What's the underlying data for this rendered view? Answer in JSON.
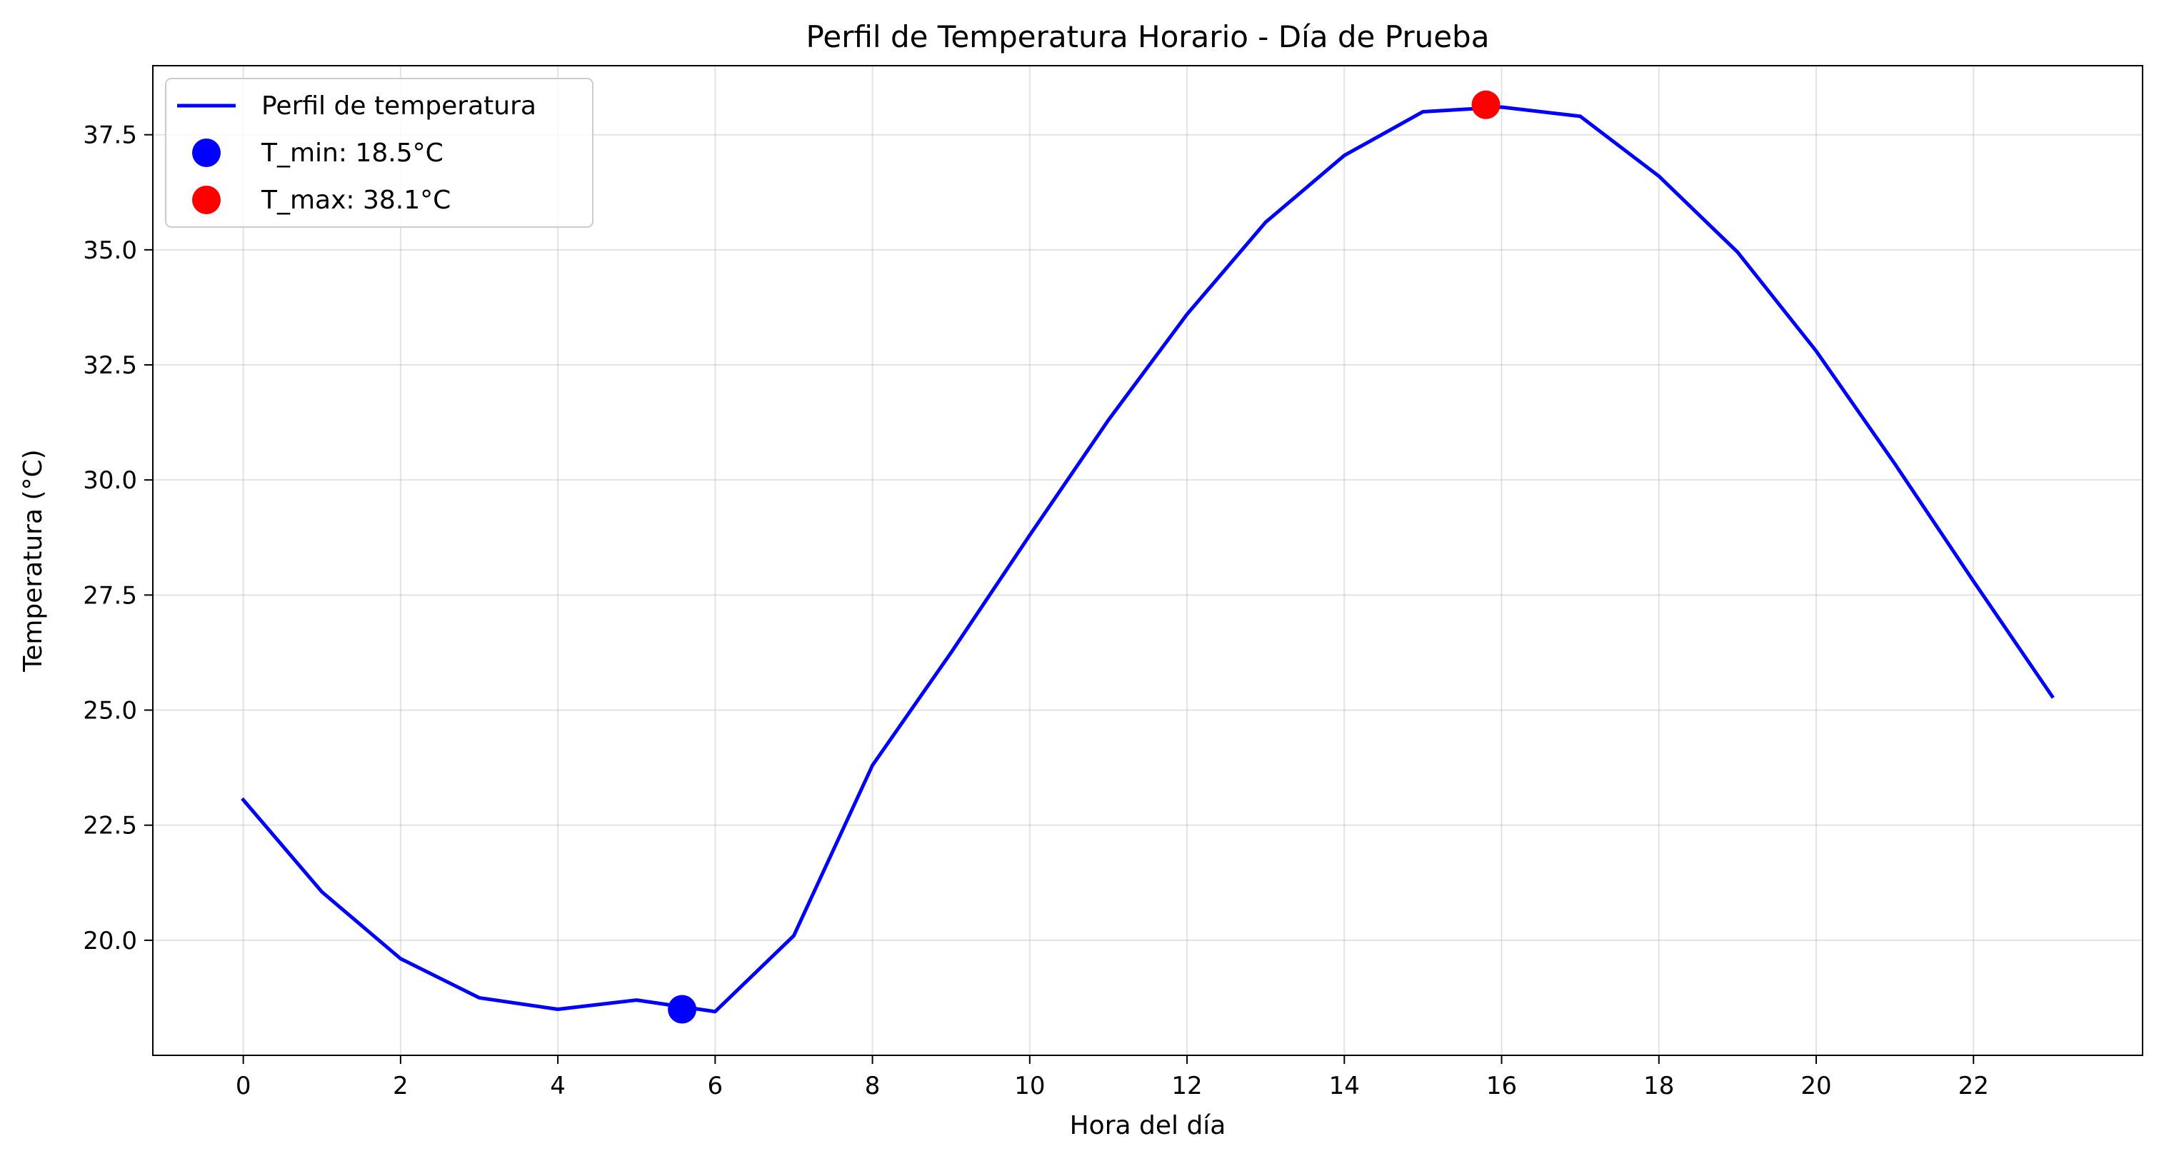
{
  "chart_data": {
    "type": "line",
    "title": "Perfil de Temperatura Horario - Día de Prueba",
    "xlabel": "Hora del día",
    "ylabel": "Temperatura (°C)",
    "xlim": [
      -1.15,
      24.15
    ],
    "ylim": [
      17.5,
      39.0
    ],
    "x_ticks": [
      0,
      2,
      4,
      6,
      8,
      10,
      12,
      14,
      16,
      18,
      20,
      22
    ],
    "x_tick_labels": [
      "0",
      "2",
      "4",
      "6",
      "8",
      "10",
      "12",
      "14",
      "16",
      "18",
      "20",
      "22"
    ],
    "y_ticks": [
      20.0,
      22.5,
      25.0,
      27.5,
      30.0,
      32.5,
      35.0,
      37.5
    ],
    "y_tick_labels": [
      "20.0",
      "22.5",
      "25.0",
      "27.5",
      "30.0",
      "32.5",
      "35.0",
      "37.5"
    ],
    "grid": true,
    "legend_position": "upper-left",
    "series": [
      {
        "name": "Perfil de temperatura",
        "color": "#0000ff",
        "x": [
          0,
          1,
          2,
          3,
          4,
          5,
          6,
          7,
          8,
          9,
          10,
          11,
          12,
          13,
          14,
          15,
          16,
          17,
          18,
          19,
          20,
          21,
          22,
          23
        ],
        "values": [
          23.05,
          21.05,
          19.6,
          18.75,
          18.5,
          18.7,
          18.45,
          20.1,
          23.8,
          26.25,
          28.8,
          31.3,
          33.6,
          35.6,
          37.05,
          38.0,
          38.1,
          37.9,
          36.6,
          34.95,
          32.8,
          30.35,
          27.8,
          25.3
        ]
      }
    ],
    "markers": [
      {
        "name": "T_min: 18.5°C",
        "color": "#0000ff",
        "x": 5.58,
        "y": 18.5
      },
      {
        "name": "T_max: 38.1°C",
        "color": "#ff0000",
        "x": 15.8,
        "y": 38.15
      }
    ]
  }
}
